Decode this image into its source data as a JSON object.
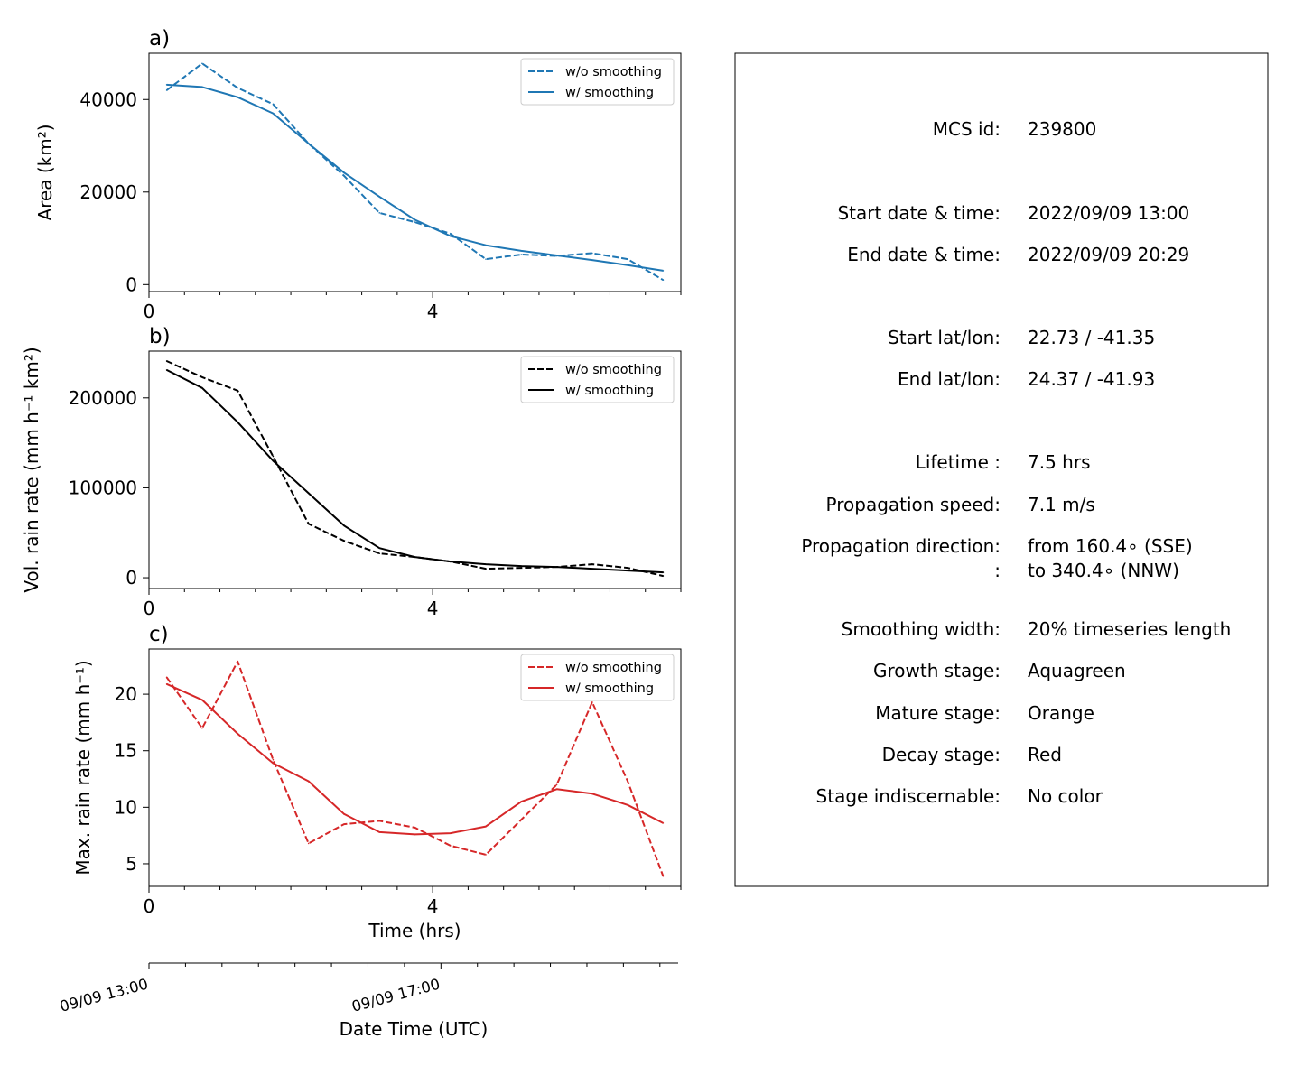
{
  "chart_data": [
    {
      "type": "line",
      "panel_label": "a)",
      "xlabel": "",
      "ylabel": "Area  (km²)",
      "xlim": [
        0,
        7.5
      ],
      "ylim": [
        -1500,
        50000
      ],
      "xticks": [
        0,
        4
      ],
      "xticklabels": [
        "0",
        "4"
      ],
      "yticks": [
        0,
        20000,
        40000
      ],
      "yticklabels": [
        "0",
        "20000",
        "40000"
      ],
      "legend_position": "upper right",
      "color": "#1f77b4",
      "series": [
        {
          "name": "w/o smoothing",
          "style": "dashed",
          "x": [
            0.25,
            0.75,
            1.25,
            1.75,
            2.25,
            2.75,
            3.25,
            3.75,
            4.25,
            4.75,
            5.25,
            5.75,
            6.25,
            6.75,
            7.25
          ],
          "y": [
            42000,
            47800,
            42500,
            39000,
            30500,
            23500,
            15500,
            13500,
            11000,
            5500,
            6500,
            6200,
            6800,
            5500,
            1000
          ]
        },
        {
          "name": "w/ smoothing",
          "style": "solid",
          "x": [
            0.25,
            0.75,
            1.25,
            1.75,
            2.25,
            2.75,
            3.25,
            3.75,
            4.25,
            4.75,
            5.25,
            5.75,
            6.25,
            6.75,
            7.25
          ],
          "y": [
            43200,
            42700,
            40500,
            37000,
            30500,
            24200,
            19000,
            14000,
            10500,
            8500,
            7300,
            6300,
            5300,
            4200,
            3000
          ]
        }
      ]
    },
    {
      "type": "line",
      "panel_label": "b)",
      "xlabel": "",
      "ylabel": "Vol. rain rate (mm h⁻¹ km²)",
      "xlim": [
        0,
        7.5
      ],
      "ylim": [
        -12000,
        252000
      ],
      "xticks": [
        0,
        4
      ],
      "xticklabels": [
        "0",
        "4"
      ],
      "yticks": [
        0,
        100000,
        200000
      ],
      "yticklabels": [
        "0",
        "100000",
        "200000"
      ],
      "legend_position": "upper right",
      "color": "#000000",
      "series": [
        {
          "name": "w/o smoothing",
          "style": "dashed",
          "x": [
            0.25,
            0.75,
            1.25,
            1.75,
            2.25,
            2.75,
            3.25,
            3.75,
            4.25,
            4.75,
            5.25,
            5.75,
            6.25,
            6.75,
            7.25
          ],
          "y": [
            241000,
            223000,
            208000,
            135000,
            60000,
            41000,
            27000,
            23000,
            18000,
            10000,
            11000,
            12000,
            15000,
            11000,
            2000
          ]
        },
        {
          "name": "w/ smoothing",
          "style": "solid",
          "x": [
            0.25,
            0.75,
            1.25,
            1.75,
            2.25,
            2.75,
            3.25,
            3.75,
            4.25,
            4.75,
            5.25,
            5.75,
            6.25,
            6.75,
            7.25
          ],
          "y": [
            231000,
            211000,
            173000,
            130000,
            94000,
            58000,
            33000,
            23000,
            18000,
            15000,
            13000,
            12000,
            10000,
            8000,
            6000
          ]
        }
      ]
    },
    {
      "type": "line",
      "panel_label": "c)",
      "xlabel": "Time (hrs)",
      "ylabel": "Max. rain rate  (mm h⁻¹)",
      "xlim": [
        0,
        7.5
      ],
      "ylim": [
        3,
        24
      ],
      "xticks": [
        0,
        4
      ],
      "xticklabels": [
        "0",
        "4"
      ],
      "yticks": [
        5,
        10,
        15,
        20
      ],
      "yticklabels": [
        "5",
        "10",
        "15",
        "20"
      ],
      "legend_position": "upper right",
      "color": "#d62728",
      "series": [
        {
          "name": "w/o smoothing",
          "style": "dashed",
          "x": [
            0.25,
            0.75,
            1.25,
            1.75,
            2.25,
            2.75,
            3.25,
            3.75,
            4.25,
            4.75,
            5.25,
            5.75,
            6.25,
            6.75,
            7.25
          ],
          "y": [
            21.5,
            17.0,
            22.9,
            14.2,
            6.8,
            8.5,
            8.8,
            8.2,
            6.6,
            5.8,
            8.9,
            12.0,
            19.3,
            12.3,
            3.9
          ]
        },
        {
          "name": "w/ smoothing",
          "style": "solid",
          "x": [
            0.25,
            0.75,
            1.25,
            1.75,
            2.25,
            2.75,
            3.25,
            3.75,
            4.25,
            4.75,
            5.25,
            5.75,
            6.25,
            6.75,
            7.25
          ],
          "y": [
            20.9,
            19.5,
            16.5,
            13.9,
            12.3,
            9.4,
            7.8,
            7.6,
            7.7,
            8.3,
            10.5,
            11.6,
            11.2,
            10.2,
            8.6
          ]
        }
      ]
    }
  ],
  "date_axis": {
    "label": "Date Time (UTC)",
    "ticks": [
      {
        "hours": 0,
        "label": "09/09 13:00"
      },
      {
        "hours": 4,
        "label": "09/09 17:00"
      }
    ]
  },
  "info_panel": {
    "rows": [
      {
        "key": "MCS id:",
        "value": "239800"
      },
      {
        "key": "Start date & time:",
        "value": "2022/09/09 13:00"
      },
      {
        "key": "End date & time:",
        "value": "2022/09/09 20:29"
      },
      {
        "key": "Start lat/lon:",
        "value": "22.73 / -41.35"
      },
      {
        "key": "End lat/lon:",
        "value": "24.37 / -41.93"
      },
      {
        "key": "Lifetime :",
        "value": "7.5 hrs"
      },
      {
        "key": "Propagation speed:",
        "value": "7.1 m/s"
      },
      {
        "key": "Propagation direction:",
        "value": "from 160.4∘ (SSE)"
      },
      {
        "key": ":",
        "value": "to   340.4∘ (NNW)"
      },
      {
        "key": "Smoothing width:",
        "value": "20% timeseries length"
      },
      {
        "key": "Growth stage:",
        "value": "Aquagreen"
      },
      {
        "key": "Mature stage:",
        "value": "Orange"
      },
      {
        "key": "Decay stage:",
        "value": "Red"
      },
      {
        "key": "Stage indiscernable:",
        "value": "No color"
      }
    ]
  }
}
